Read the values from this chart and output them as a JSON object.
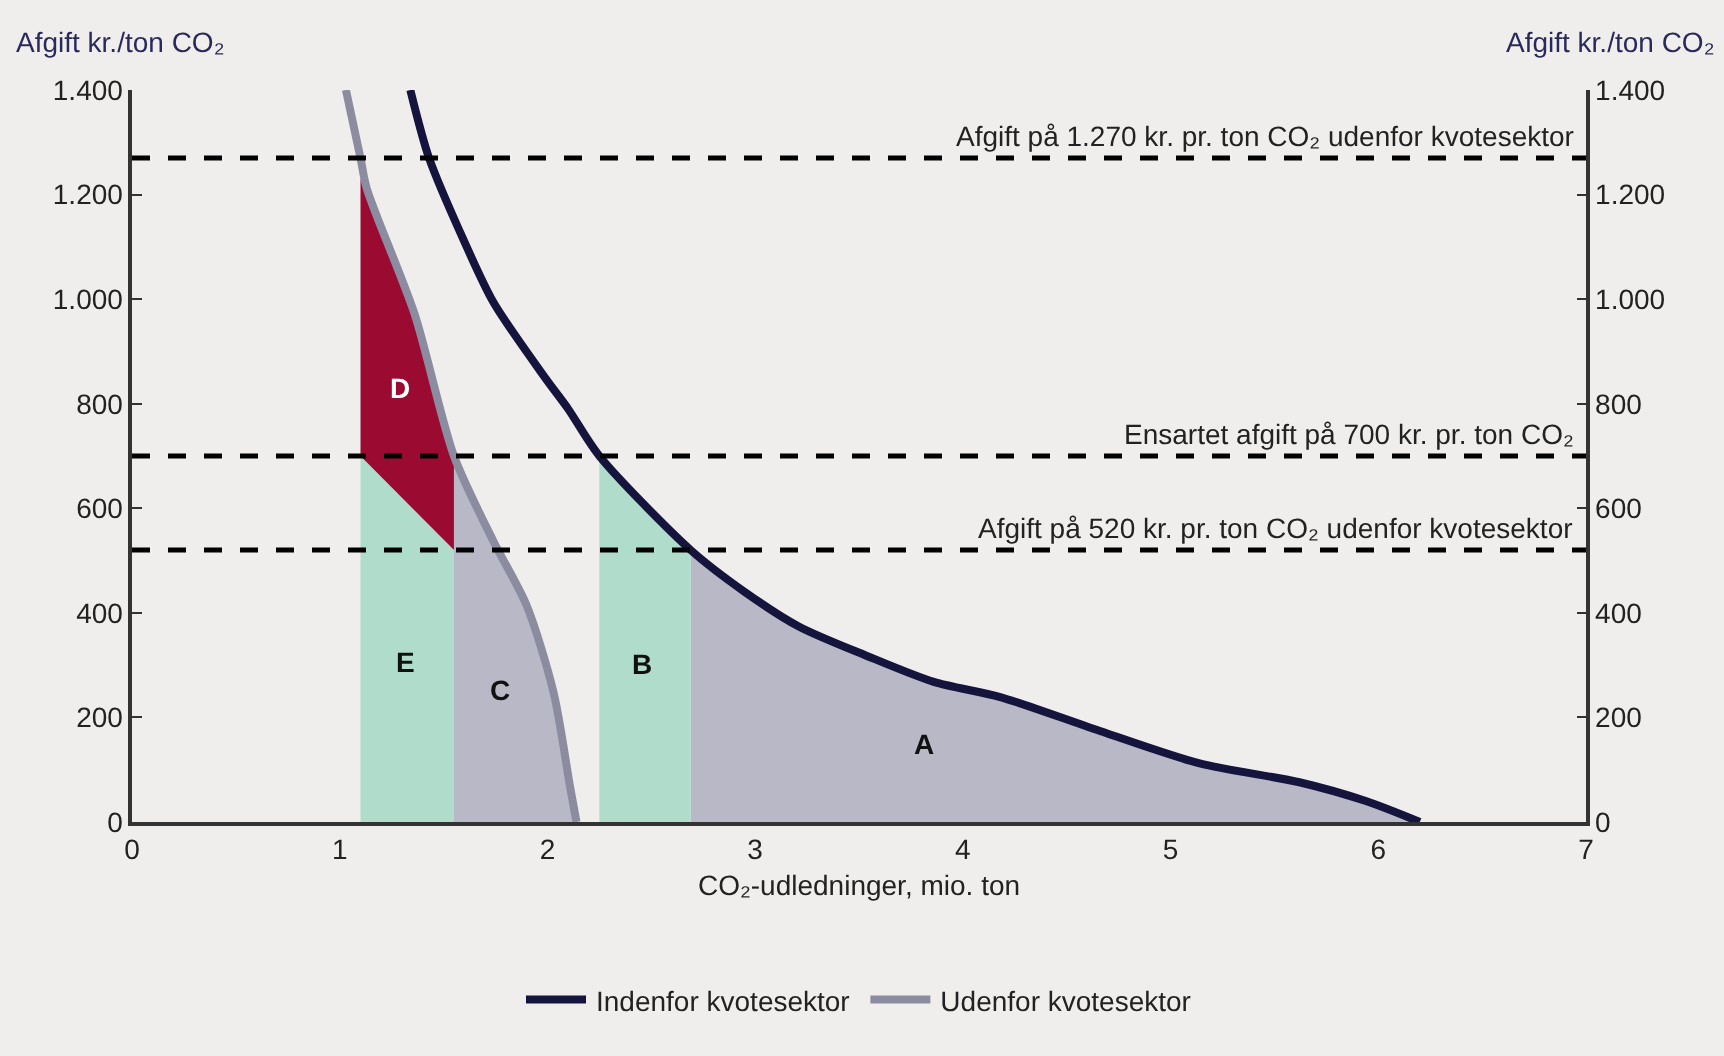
{
  "chart_data": {
    "type": "area",
    "xlabel": "CO₂-udledninger, mio. ton",
    "ylabel": "Afgift kr./ton CO₂",
    "y2label": "Afgift kr./ton CO₂",
    "xlim": [
      0,
      7
    ],
    "xticks": [
      0,
      1,
      2,
      3,
      4,
      5,
      6,
      7
    ],
    "ylim": [
      0,
      1400
    ],
    "yticks": [
      0,
      200,
      400,
      600,
      800,
      {
        "value": 1000,
        "label": "1.000"
      },
      {
        "value": 1200,
        "label": "1.200"
      },
      {
        "value": 1400,
        "label": "1.400"
      }
    ],
    "y2lim": [
      0,
      1400
    ],
    "y2ticks": [
      0,
      200,
      400,
      600,
      800,
      {
        "value": 1000,
        "label": "1.000"
      },
      {
        "value": 1200,
        "label": "1.200"
      },
      {
        "value": 1400,
        "label": "1.400"
      }
    ],
    "legend": "bottom",
    "series": [
      {
        "name": "A",
        "color": "#b8b8c6",
        "x": [
          2.69,
          2.95,
          3.21,
          3.53,
          3.86,
          4.18,
          4.66,
          5.14,
          5.62,
          5.94,
          6.2
        ],
        "values": [
          520,
          440,
          374,
          319,
          268,
          239,
          174,
          112,
          76,
          40,
          0
        ]
      },
      {
        "name": "C",
        "color": "#b8b8c6",
        "x": [
          1.55,
          1.74,
          1.9,
          2.03,
          2.11,
          2.14
        ],
        "values": [
          700,
          537,
          414,
          247,
          65,
          0
        ]
      },
      {
        "name": "B",
        "color": "#b0dccb",
        "x": [
          2.25,
          2.45,
          2.69
        ],
        "values": [
          700,
          605,
          520
        ]
      },
      {
        "name": "E",
        "color": "#b0dccb",
        "x": [
          1.1,
          1.55
        ],
        "values": [
          700,
          520
        ]
      },
      {
        "name": "D",
        "color": "#9b0a30",
        "x": [
          1.1,
          1.13,
          1.36,
          1.55
        ],
        "values": [
          1230,
          1212,
          972,
          700
        ]
      },
      {
        "type": "line",
        "name": "Indenfor kvotesektor",
        "color": "#14143c",
        "x": [
          1.34,
          1.43,
          1.6,
          1.74,
          1.99,
          2.1,
          2.25,
          2.69,
          2.95,
          3.21,
          3.53,
          3.86,
          4.18,
          4.66,
          5.14,
          5.62,
          5.94,
          6.2
        ],
        "values": [
          1400,
          1270,
          1110,
          994,
          849,
          790,
          700,
          520,
          440,
          374,
          319,
          268,
          239,
          174,
          112,
          76,
          40,
          0
        ]
      },
      {
        "type": "line",
        "name": "Udenfor kvotesektor",
        "color": "#8c8ca0",
        "x": [
          1.03,
          1.1,
          1.13,
          1.36,
          1.55,
          1.74,
          1.9,
          2.03,
          2.11,
          2.14
        ],
        "values": [
          1400,
          1270,
          1212,
          972,
          700,
          537,
          414,
          247,
          65,
          0
        ]
      }
    ],
    "ref_lines": [
      {
        "axis": "y",
        "value": 1270,
        "label": "Afgift på 1.270 kr. pr. ton CO₂ udenfor kvotesektor",
        "color": "#000000",
        "line_style": "dashed"
      },
      {
        "axis": "y",
        "value": 700,
        "label": "Ensartet afgift på 700 kr. pr. ton CO₂",
        "color": "#000000",
        "line_style": "dashed"
      },
      {
        "axis": "y",
        "value": 520,
        "label": "Afgift på 520 kr. pr. ton CO₂ udenfor kvotesektor",
        "color": "#000000",
        "line_style": "dashed"
      }
    ]
  }
}
